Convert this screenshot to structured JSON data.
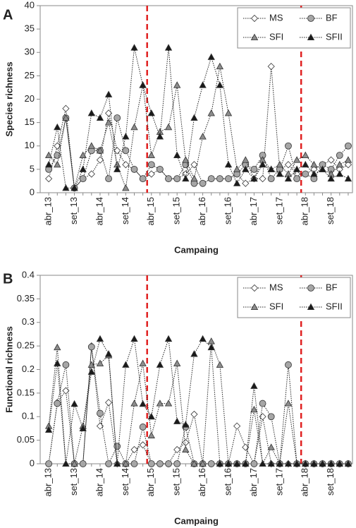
{
  "chart_data": [
    {
      "type": "line",
      "panel": "A",
      "ylabel": "Species richness",
      "xlabel": "Campaing",
      "categories": [
        "abr_13",
        null,
        null,
        "set_13",
        null,
        null,
        "abr_14",
        null,
        null,
        "set_14",
        null,
        null,
        "abr_15",
        null,
        null,
        "set_15",
        null,
        null,
        "abr_16",
        null,
        null,
        "set_16",
        null,
        null,
        "abr_17",
        null,
        null,
        "set_17",
        null,
        null,
        "abr_18",
        null,
        null,
        "set_18",
        null,
        null
      ],
      "ylim": [
        0,
        40
      ],
      "yticks": [
        0,
        5,
        10,
        15,
        20,
        25,
        30,
        35,
        40
      ],
      "legend": "upper right",
      "series": [
        {
          "name": "MS",
          "marker": "diamond",
          "color": "#ffffff",
          "values": [
            3,
            10,
            18,
            1,
            3,
            4,
            7,
            17,
            9,
            6,
            5,
            3,
            4,
            5,
            3,
            3,
            4,
            6,
            2,
            3,
            3,
            3,
            4,
            2,
            3,
            3,
            27,
            5,
            6,
            4,
            4,
            5,
            6,
            7,
            5,
            6
          ]
        },
        {
          "name": "BF",
          "marker": "circle",
          "color": "#a6a6a6",
          "values": [
            5,
            8,
            16,
            1,
            3,
            9,
            9,
            3,
            16,
            9,
            5,
            3,
            6,
            5,
            3,
            3,
            6,
            2,
            2,
            3,
            3,
            3,
            4,
            6,
            5,
            8,
            3,
            5,
            10,
            3,
            4,
            3,
            6,
            5,
            8,
            10
          ]
        },
        {
          "name": "SFI",
          "marker": "triangle",
          "color": "#8c8c8c",
          "values": [
            8,
            6,
            16,
            1,
            8,
            10,
            9,
            15,
            6,
            1,
            14,
            23,
            8,
            13,
            14,
            23,
            7,
            3,
            12,
            17,
            27,
            17,
            5,
            7,
            3,
            7,
            5,
            6,
            4,
            7,
            8,
            6,
            5,
            4,
            6,
            7
          ]
        },
        {
          "name": "SFII",
          "marker": "triangle",
          "color": "#1a1a1a",
          "values": [
            6,
            14,
            1,
            1,
            5,
            17,
            16,
            21,
            5,
            12,
            31,
            23,
            17,
            12,
            31,
            8,
            3,
            16,
            23,
            29,
            23,
            6,
            2,
            5,
            3,
            6,
            5,
            4,
            3,
            5,
            6,
            4,
            5,
            3,
            4,
            3
          ]
        }
      ]
    },
    {
      "type": "line",
      "panel": "B",
      "ylabel": "Functional richness",
      "xlabel": "Campaing",
      "categories": [
        "abr_13",
        null,
        null,
        "set_13",
        null,
        null,
        "abr_14",
        null,
        null,
        "set_14",
        null,
        null,
        "abr_15",
        null,
        null,
        "set_15",
        null,
        null,
        "abr_16",
        null,
        null,
        "set_16",
        null,
        null,
        "abr_17",
        null,
        null,
        "set_17",
        null,
        null,
        "abr_18",
        null,
        null,
        "set_18",
        null,
        null
      ],
      "ylim": [
        0,
        0.4
      ],
      "yticks": [
        0,
        0.05,
        0.1,
        0.15,
        0.2,
        0.25,
        0.3,
        0.35,
        0.4
      ],
      "legend": "upper right",
      "series": [
        {
          "name": "MS",
          "marker": "diamond",
          "color": "#ffffff",
          "values": [
            0,
            0.13,
            0.155,
            0,
            0,
            0.25,
            0.08,
            0.13,
            0,
            0,
            0.03,
            0.04,
            0,
            0,
            0,
            0.03,
            0.045,
            0.105,
            0,
            0,
            0,
            0,
            0.08,
            0.035,
            0,
            0.1,
            0,
            0,
            0,
            0,
            0,
            0,
            0,
            0,
            0,
            0
          ]
        },
        {
          "name": "BF",
          "marker": "circle",
          "color": "#a6a6a6",
          "values": [
            0,
            0.128,
            0.21,
            0,
            0,
            0.248,
            0.107,
            0,
            0.037,
            0,
            0,
            0.078,
            0,
            0,
            0,
            0,
            0.078,
            0,
            0,
            0,
            0,
            0,
            0,
            0,
            0,
            0.128,
            0.1,
            0,
            0.21,
            0,
            0,
            0,
            0,
            0,
            0,
            0
          ]
        },
        {
          "name": "SFI",
          "marker": "triangle",
          "color": "#8c8c8c",
          "values": [
            0.08,
            0.247,
            0,
            0,
            0.08,
            0.21,
            0.213,
            0.23,
            0,
            0,
            0.128,
            0.213,
            0.06,
            0.128,
            0.128,
            0.213,
            0.03,
            0,
            0,
            0.26,
            0.21,
            0,
            0,
            0,
            0.115,
            0,
            0.035,
            0,
            0.128,
            0,
            0,
            0,
            0,
            0,
            0,
            0
          ]
        },
        {
          "name": "SFII",
          "marker": "triangle",
          "color": "#1a1a1a",
          "values": [
            0.072,
            0.213,
            0,
            0.127,
            0.075,
            0.195,
            0.265,
            0.233,
            0,
            0.21,
            0.265,
            0.127,
            0.1,
            0.21,
            0.265,
            0.09,
            0.083,
            0.233,
            0.265,
            0.247,
            0,
            0,
            0,
            0,
            0.165,
            0,
            0,
            0,
            0,
            0,
            0,
            0,
            0,
            0,
            0,
            0
          ]
        }
      ]
    }
  ]
}
